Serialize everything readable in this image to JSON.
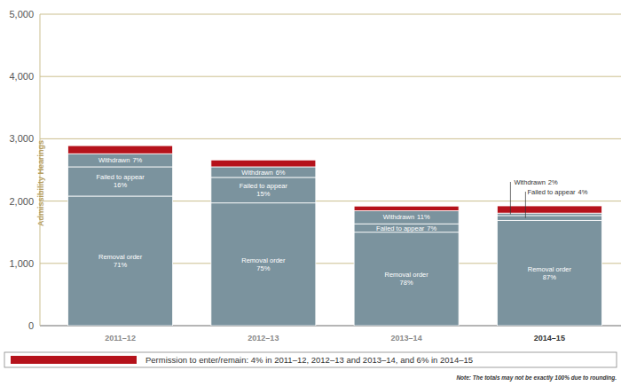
{
  "chart_data": {
    "type": "bar",
    "stacked": true,
    "categories": [
      "2011–12",
      "2012–13",
      "2013–14",
      "2014–15"
    ],
    "y_label": "Admissibility Hearings",
    "ylim": [
      0,
      5000
    ],
    "yticks": [
      0,
      {
        "value": 1000,
        "label": "1,000"
      },
      {
        "value": 2000,
        "label": "2,000"
      },
      {
        "value": 3000,
        "label": "3,000"
      },
      {
        "value": 4000,
        "label": "4,000"
      },
      {
        "value": 5000,
        "label": "5,000"
      }
    ],
    "grid": true,
    "series": [
      {
        "name": "Removal order",
        "color": "#7b939e",
        "values": [
          2080,
          1970,
          1500,
          1690
        ],
        "percent_labels": [
          "71%",
          "75%",
          "78%",
          "87%"
        ]
      },
      {
        "name": "Failed to appear",
        "color": "#7b939e",
        "values": [
          470,
          410,
          135,
          78
        ],
        "percent_labels": [
          "16%",
          "15%",
          "7%",
          "4%"
        ]
      },
      {
        "name": "Withdrawn",
        "color": "#7b939e",
        "values": [
          210,
          170,
          210,
          39
        ],
        "percent_labels": [
          "7%",
          "6%",
          "11%",
          "2%"
        ]
      },
      {
        "name": "Permission to enter/remain: 4% in 2011–12, 2012–13 and 2013–14, and 6% in 2014–15",
        "color": "#b5121b",
        "values": [
          130,
          110,
          75,
          116
        ]
      }
    ],
    "legend": "bottom",
    "note": "Note: The totals may not be exactly 100% due to rounding."
  }
}
